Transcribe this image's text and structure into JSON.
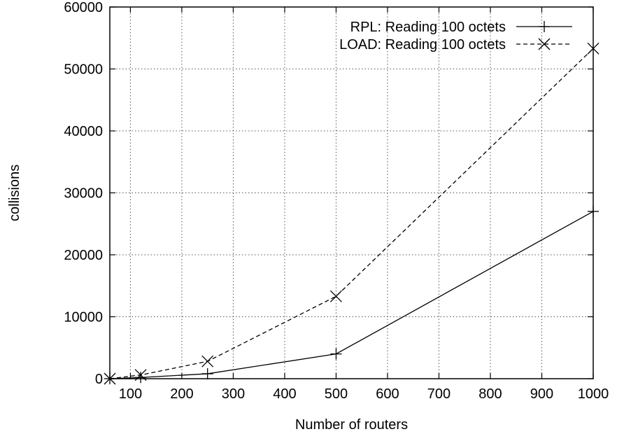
{
  "chart_data": {
    "type": "line",
    "title": "",
    "xlabel": "Number of routers",
    "ylabel": "collisions",
    "xlim": [
      60,
      1000
    ],
    "ylim": [
      0,
      60000
    ],
    "x_ticks": [
      100,
      200,
      300,
      400,
      500,
      600,
      700,
      800,
      900,
      1000
    ],
    "y_ticks": [
      0,
      10000,
      20000,
      30000,
      40000,
      50000,
      60000
    ],
    "grid": true,
    "legend_position": "top-right",
    "series": [
      {
        "name": "RPL: Reading 100 octets",
        "marker": "plus",
        "line_style": "solid",
        "color": "#000000",
        "x": [
          60,
          120,
          250,
          500,
          1000
        ],
        "y": [
          0,
          200,
          800,
          4000,
          27000
        ]
      },
      {
        "name": "LOAD: Reading 100 octets",
        "marker": "cross",
        "line_style": "dashed",
        "color": "#000000",
        "x": [
          60,
          120,
          250,
          500,
          1000
        ],
        "y": [
          0,
          600,
          2800,
          13300,
          53300
        ]
      }
    ]
  }
}
